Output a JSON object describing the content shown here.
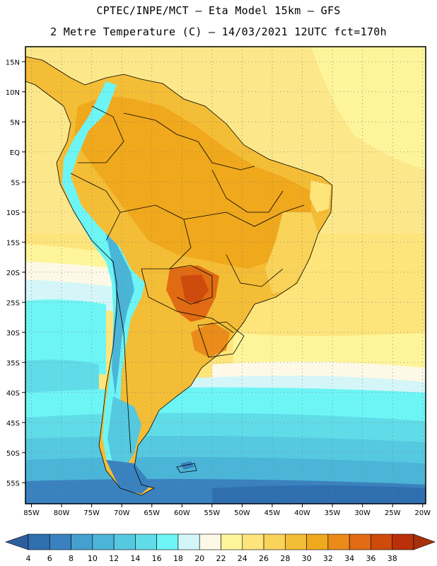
{
  "title_line1": "CPTEC/INPE/MCT —  Eta Model 15km — GFS",
  "title_line2": "2 Metre Temperature (C) — 14/03/2021 12UTC fct=170h",
  "map": {
    "lon_range": [
      -86,
      -19.5
    ],
    "lat_range": [
      -58.5,
      17.5
    ],
    "lon_ticks": [
      {
        "value": -85,
        "label": "85W"
      },
      {
        "value": -80,
        "label": "80W"
      },
      {
        "value": -75,
        "label": "75W"
      },
      {
        "value": -70,
        "label": "70W"
      },
      {
        "value": -65,
        "label": "65W"
      },
      {
        "value": -60,
        "label": "60W"
      },
      {
        "value": -55,
        "label": "55W"
      },
      {
        "value": -50,
        "label": "50W"
      },
      {
        "value": -45,
        "label": "45W"
      },
      {
        "value": -40,
        "label": "40W"
      },
      {
        "value": -35,
        "label": "35W"
      },
      {
        "value": -30,
        "label": "30W"
      },
      {
        "value": -25,
        "label": "25W"
      },
      {
        "value": -20,
        "label": "20W"
      }
    ],
    "lat_ticks": [
      {
        "value": 15,
        "label": "15N"
      },
      {
        "value": 10,
        "label": "10N"
      },
      {
        "value": 5,
        "label": "5N"
      },
      {
        "value": 0,
        "label": "EQ"
      },
      {
        "value": -5,
        "label": "5S"
      },
      {
        "value": -10,
        "label": "10S"
      },
      {
        "value": -15,
        "label": "15S"
      },
      {
        "value": -20,
        "label": "20S"
      },
      {
        "value": -25,
        "label": "25S"
      },
      {
        "value": -30,
        "label": "30S"
      },
      {
        "value": -35,
        "label": "35S"
      },
      {
        "value": -40,
        "label": "40S"
      },
      {
        "value": -45,
        "label": "45S"
      },
      {
        "value": -50,
        "label": "50S"
      },
      {
        "value": -55,
        "label": "55S"
      }
    ]
  },
  "colorbar": {
    "labels": [
      "4",
      "6",
      "8",
      "10",
      "12",
      "14",
      "16",
      "18",
      "20",
      "22",
      "24",
      "26",
      "28",
      "30",
      "32",
      "34",
      "36",
      "38"
    ],
    "colors": [
      "#2f6fb0",
      "#3a82bf",
      "#45a0cf",
      "#4bb5d8",
      "#55c9e0",
      "#60dce8",
      "#6df5f5",
      "#d4f6f8",
      "#fdf9e6",
      "#fef59a",
      "#fde57c",
      "#f9d35a",
      "#f4bd36",
      "#f0a81c",
      "#ea8b1a",
      "#e06b12",
      "#cf4a0d",
      "#b9300a"
    ],
    "left_arrow_color": "#2d5f9d",
    "right_arrow_color": "#a8300b"
  }
}
